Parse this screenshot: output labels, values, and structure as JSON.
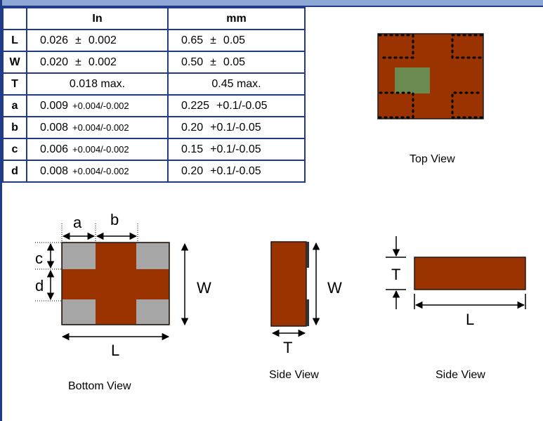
{
  "table": {
    "headers": {
      "inch": "In",
      "mm": "mm"
    },
    "rows": [
      {
        "label": "L",
        "in_value": "0.026",
        "in_pm": "±",
        "in_tol": "0.002",
        "mm_value": "0.65",
        "mm_pm": "±",
        "mm_tol": "0.05"
      },
      {
        "label": "W",
        "in_value": "0.020",
        "in_pm": "±",
        "in_tol": "0.002",
        "mm_value": "0.50",
        "mm_pm": "±",
        "mm_tol": "0.05"
      },
      {
        "label": "T",
        "in_text": "0.018 max.",
        "mm_text": "0.45 max."
      },
      {
        "label": "a",
        "in_value": "0.009",
        "in_tol": "+0.004/-0.002",
        "mm_value": "0.225",
        "mm_tol": "+0.1/-0.05"
      },
      {
        "label": "b",
        "in_value": "0.008",
        "in_tol": "+0.004/-0.002",
        "mm_value": "0.20",
        "mm_tol": "+0.1/-0.05"
      },
      {
        "label": "c",
        "in_value": "0.006",
        "in_tol": "+0.004/-0.002",
        "mm_value": "0.15",
        "mm_tol": "+0.1/-0.05"
      },
      {
        "label": "d",
        "in_value": "0.008",
        "in_tol": "+0.004/-0.002",
        "mm_value": "0.20",
        "mm_tol": "+0.1/-0.05"
      }
    ]
  },
  "views": {
    "top": "Top View",
    "bottom": "Bottom View",
    "side1": "Side View",
    "side2": "Side View"
  },
  "dimension_labels": {
    "a": "a",
    "b": "b",
    "c": "c",
    "d": "d",
    "w_bottom": "W",
    "l_bottom": "L",
    "w_side": "W",
    "t_side": "T",
    "t_side2": "T",
    "l_side2": "L"
  },
  "colors": {
    "body": "#9a3300",
    "pad": "#a6a6a6",
    "marking": "#6b8a4f",
    "outline": "#1a1a1a",
    "table_border": "#1f3b8a"
  }
}
